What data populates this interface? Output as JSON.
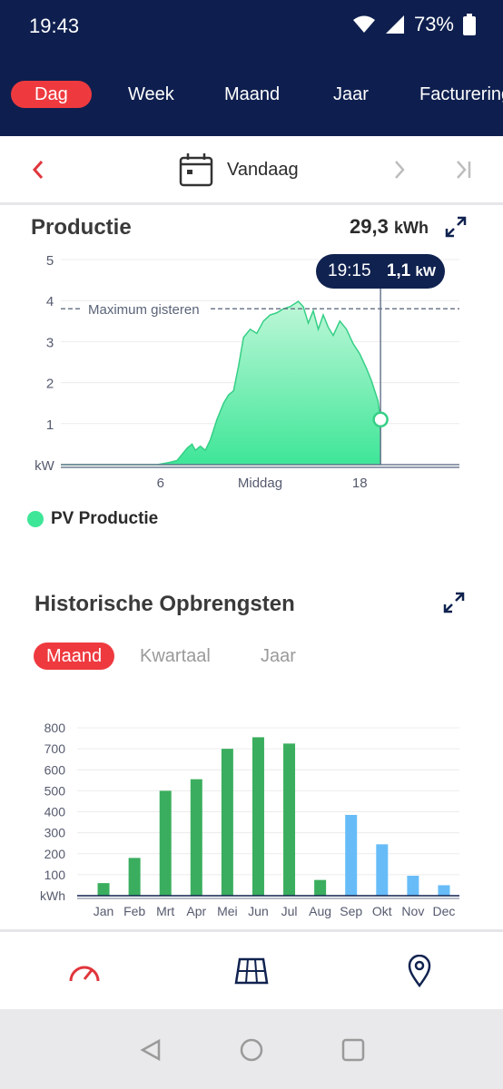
{
  "status": {
    "time": "19:43",
    "battery": "73%"
  },
  "tabs": [
    "Dag",
    "Week",
    "Maand",
    "Jaar",
    "Facturering"
  ],
  "date": {
    "label": "Vandaag"
  },
  "production": {
    "title": "Productie",
    "total": "29,3",
    "total_unit": "kWh",
    "tooltip_time": "19:15",
    "tooltip_value": "1,1",
    "tooltip_unit": "kW",
    "legend": "PV Productie",
    "colors": {
      "fill": "#3ee698",
      "line": "#35cf86",
      "dashed": "#6f7a8a"
    }
  },
  "historic": {
    "title": "Historische Opbrengsten",
    "tabs": [
      "Maand",
      "Kwartaal",
      "Jaar"
    ]
  },
  "chart_data": [
    {
      "type": "area",
      "ylabel": "kW",
      "ylim": [
        0,
        5
      ],
      "yticks": [
        1,
        2,
        3,
        4,
        5
      ],
      "xticks": [
        {
          "x": 6,
          "label": "6"
        },
        {
          "x": 12,
          "label": "Middag"
        },
        {
          "x": 18,
          "label": "18"
        }
      ],
      "xlim": [
        0,
        24
      ],
      "reference_line": {
        "label": "Maximum gisteren",
        "value": 3.8
      },
      "series": [
        {
          "name": "PV Productie",
          "x": [
            0,
            5.8,
            6.5,
            7.0,
            7.6,
            7.9,
            8.1,
            8.4,
            8.7,
            9.0,
            9.4,
            9.8,
            10.1,
            10.4,
            10.7,
            11.0,
            11.4,
            11.8,
            12.2,
            12.6,
            13.0,
            13.4,
            13.8,
            14.3,
            14.6,
            14.9,
            15.2,
            15.5,
            15.8,
            16.1,
            16.4,
            16.8,
            17.2,
            17.6,
            18.0,
            18.4,
            18.7,
            19.1,
            19.25
          ],
          "y": [
            0,
            0,
            0.05,
            0.1,
            0.4,
            0.5,
            0.35,
            0.45,
            0.35,
            0.6,
            1.1,
            1.5,
            1.7,
            1.8,
            2.4,
            3.1,
            3.3,
            3.2,
            3.5,
            3.65,
            3.7,
            3.8,
            3.85,
            3.98,
            3.85,
            3.45,
            3.75,
            3.3,
            3.65,
            3.35,
            3.15,
            3.5,
            3.3,
            2.95,
            2.7,
            2.35,
            2.05,
            1.55,
            1.1
          ]
        }
      ],
      "tooltip": {
        "x": 19.25,
        "y": 1.1
      }
    },
    {
      "type": "bar",
      "categories": [
        "Jan",
        "Feb",
        "Mrt",
        "Apr",
        "Mei",
        "Jun",
        "Jul",
        "Aug",
        "Sep",
        "Okt",
        "Nov",
        "Dec"
      ],
      "values": [
        60,
        180,
        500,
        555,
        700,
        755,
        725,
        75,
        385,
        245,
        95,
        50
      ],
      "colors": [
        "#3aae5e",
        "#3aae5e",
        "#3aae5e",
        "#3aae5e",
        "#3aae5e",
        "#3aae5e",
        "#3aae5e",
        "#3aae5e",
        "#67bcf8",
        "#67bcf8",
        "#67bcf8",
        "#67bcf8"
      ],
      "ylabel": "kWh",
      "yticks": [
        100,
        200,
        300,
        400,
        500,
        600,
        700,
        800
      ],
      "ylim": [
        0,
        800
      ]
    }
  ]
}
